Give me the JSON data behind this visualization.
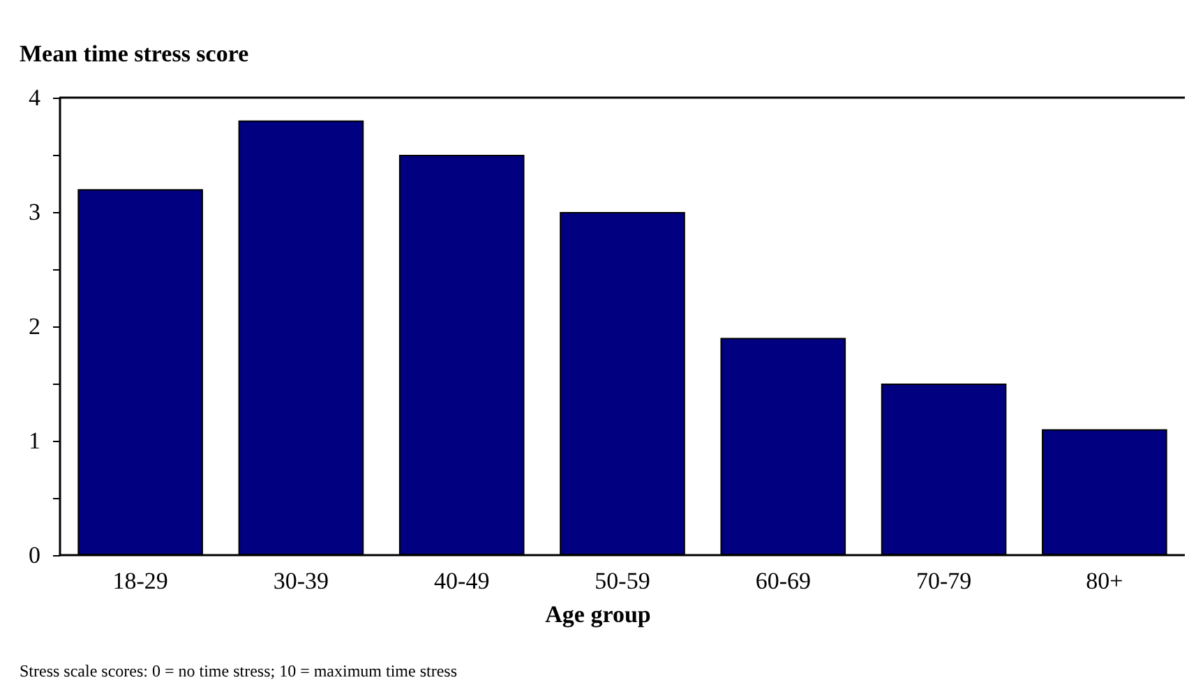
{
  "chart_data": {
    "type": "bar",
    "ylabel": "Mean time stress score",
    "xlabel": "Age group",
    "categories": [
      "18-29",
      "30-39",
      "40-49",
      "50-59",
      "60-69",
      "70-79",
      "80+"
    ],
    "values": [
      3.2,
      3.8,
      3.5,
      3.0,
      1.9,
      1.5,
      1.1
    ],
    "color": "#000080",
    "ylim": [
      0,
      4
    ],
    "yticks": [
      0,
      {
        "value": 0.5,
        "label": null
      },
      1,
      {
        "value": 1.5,
        "label": null
      },
      2,
      {
        "value": 2.5,
        "label": null
      },
      3,
      {
        "value": 3.5,
        "label": null
      },
      4
    ],
    "grid": false,
    "annotations": [
      "Stress scale scores: 0 = no time stress; 10 = maximum time stress"
    ]
  }
}
